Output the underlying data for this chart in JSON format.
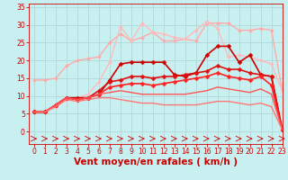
{
  "xlabel": "Vent moyen/en rafales ( km/h )",
  "background_color": "#c8f0f0",
  "grid_color": "#b0d8d8",
  "xlim": [
    -0.5,
    23
  ],
  "ylim": [
    -3.5,
    36
  ],
  "yticks": [
    0,
    5,
    10,
    15,
    20,
    25,
    30,
    35
  ],
  "xticks": [
    0,
    1,
    2,
    3,
    4,
    5,
    6,
    7,
    8,
    9,
    10,
    11,
    12,
    13,
    14,
    15,
    16,
    17,
    18,
    19,
    20,
    21,
    22,
    23
  ],
  "lines": [
    {
      "x": [
        0,
        1,
        2,
        3,
        4,
        5,
        6,
        7,
        8,
        9,
        10,
        11,
        12,
        13,
        14,
        15,
        16,
        17,
        18,
        19,
        20,
        21,
        22,
        23
      ],
      "y": [
        14.5,
        14.5,
        15.0,
        18.5,
        20.0,
        20.5,
        21.0,
        25.0,
        27.5,
        25.5,
        26.5,
        28.0,
        25.5,
        25.5,
        26.0,
        25.5,
        30.5,
        30.5,
        30.5,
        28.5,
        28.5,
        29.0,
        28.5,
        11.5
      ],
      "color": "#ffaaaa",
      "linewidth": 1.0,
      "marker": "D",
      "markersize": 2.0,
      "markerfacecolor": "#ffaaaa"
    },
    {
      "x": [
        0,
        1,
        2,
        3,
        4,
        5,
        6,
        7,
        8,
        9,
        10,
        11,
        12,
        13,
        14,
        15,
        16,
        17,
        18,
        19,
        20,
        21,
        22,
        23
      ],
      "y": [
        5.5,
        5.5,
        7.0,
        9.0,
        9.5,
        10.5,
        14.0,
        19.5,
        29.5,
        25.5,
        30.5,
        28.0,
        27.5,
        26.5,
        26.0,
        28.5,
        31.0,
        29.0,
        21.0,
        21.5,
        21.0,
        20.0,
        19.0,
        11.5
      ],
      "color": "#ffbbbb",
      "linewidth": 1.0,
      "marker": "D",
      "markersize": 2.0,
      "markerfacecolor": "#ffbbbb"
    },
    {
      "x": [
        0,
        1,
        2,
        3,
        4,
        5,
        6,
        7,
        8,
        9,
        10,
        11,
        12,
        13,
        14,
        15,
        16,
        17,
        18,
        19,
        20,
        21,
        22,
        23
      ],
      "y": [
        5.5,
        5.5,
        7.5,
        9.5,
        9.5,
        9.5,
        10.5,
        14.5,
        19.0,
        19.5,
        19.5,
        19.5,
        19.5,
        16.0,
        15.5,
        16.5,
        21.5,
        24.0,
        24.0,
        19.5,
        21.5,
        16.0,
        15.5,
        0.5
      ],
      "color": "#cc0000",
      "linewidth": 1.2,
      "marker": "D",
      "markersize": 2.5,
      "markerfacecolor": "#cc0000"
    },
    {
      "x": [
        0,
        1,
        2,
        3,
        4,
        5,
        6,
        7,
        8,
        9,
        10,
        11,
        12,
        13,
        14,
        15,
        16,
        17,
        18,
        19,
        20,
        21,
        22,
        23
      ],
      "y": [
        5.5,
        5.5,
        7.5,
        9.5,
        9.0,
        9.5,
        11.5,
        14.0,
        14.5,
        15.5,
        15.5,
        15.0,
        15.5,
        15.5,
        16.0,
        16.5,
        17.0,
        18.5,
        17.5,
        17.5,
        16.5,
        16.0,
        15.5,
        0.5
      ],
      "color": "#dd1111",
      "linewidth": 1.2,
      "marker": "D",
      "markersize": 2.5,
      "markerfacecolor": "#dd1111"
    },
    {
      "x": [
        0,
        1,
        2,
        3,
        4,
        5,
        6,
        7,
        8,
        9,
        10,
        11,
        12,
        13,
        14,
        15,
        16,
        17,
        18,
        19,
        20,
        21,
        22,
        23
      ],
      "y": [
        5.5,
        5.5,
        7.5,
        9.5,
        9.0,
        9.5,
        10.5,
        12.5,
        13.0,
        13.5,
        13.5,
        13.0,
        13.5,
        14.0,
        14.5,
        15.0,
        15.5,
        16.5,
        15.5,
        15.0,
        14.5,
        15.5,
        13.0,
        0.5
      ],
      "color": "#ff2222",
      "linewidth": 1.2,
      "marker": "D",
      "markersize": 2.5,
      "markerfacecolor": "#ff2222"
    },
    {
      "x": [
        0,
        1,
        2,
        3,
        4,
        5,
        6,
        7,
        8,
        9,
        10,
        11,
        12,
        13,
        14,
        15,
        16,
        17,
        18,
        19,
        20,
        21,
        22,
        23
      ],
      "y": [
        5.5,
        5.5,
        7.5,
        9.5,
        9.0,
        9.5,
        10.5,
        11.0,
        11.5,
        11.0,
        10.5,
        10.5,
        10.5,
        10.5,
        10.5,
        11.0,
        11.5,
        12.5,
        12.0,
        11.5,
        11.0,
        12.0,
        10.5,
        0.5
      ],
      "color": "#ff5555",
      "linewidth": 1.0,
      "marker": null,
      "markersize": 0
    },
    {
      "x": [
        0,
        1,
        2,
        3,
        4,
        5,
        6,
        7,
        8,
        9,
        10,
        11,
        12,
        13,
        14,
        15,
        16,
        17,
        18,
        19,
        20,
        21,
        22,
        23
      ],
      "y": [
        5.5,
        5.5,
        7.0,
        9.0,
        8.5,
        9.0,
        9.5,
        9.5,
        9.0,
        8.5,
        8.0,
        8.0,
        7.5,
        7.5,
        7.5,
        7.5,
        8.0,
        8.5,
        8.5,
        8.0,
        7.5,
        8.0,
        7.0,
        0.5
      ],
      "color": "#ff7777",
      "linewidth": 1.0,
      "marker": null,
      "markersize": 0
    }
  ],
  "arrow_color": "#cc0000",
  "tick_color": "#cc0000",
  "tick_fontsize": 5.5,
  "xlabel_fontsize": 7.5
}
